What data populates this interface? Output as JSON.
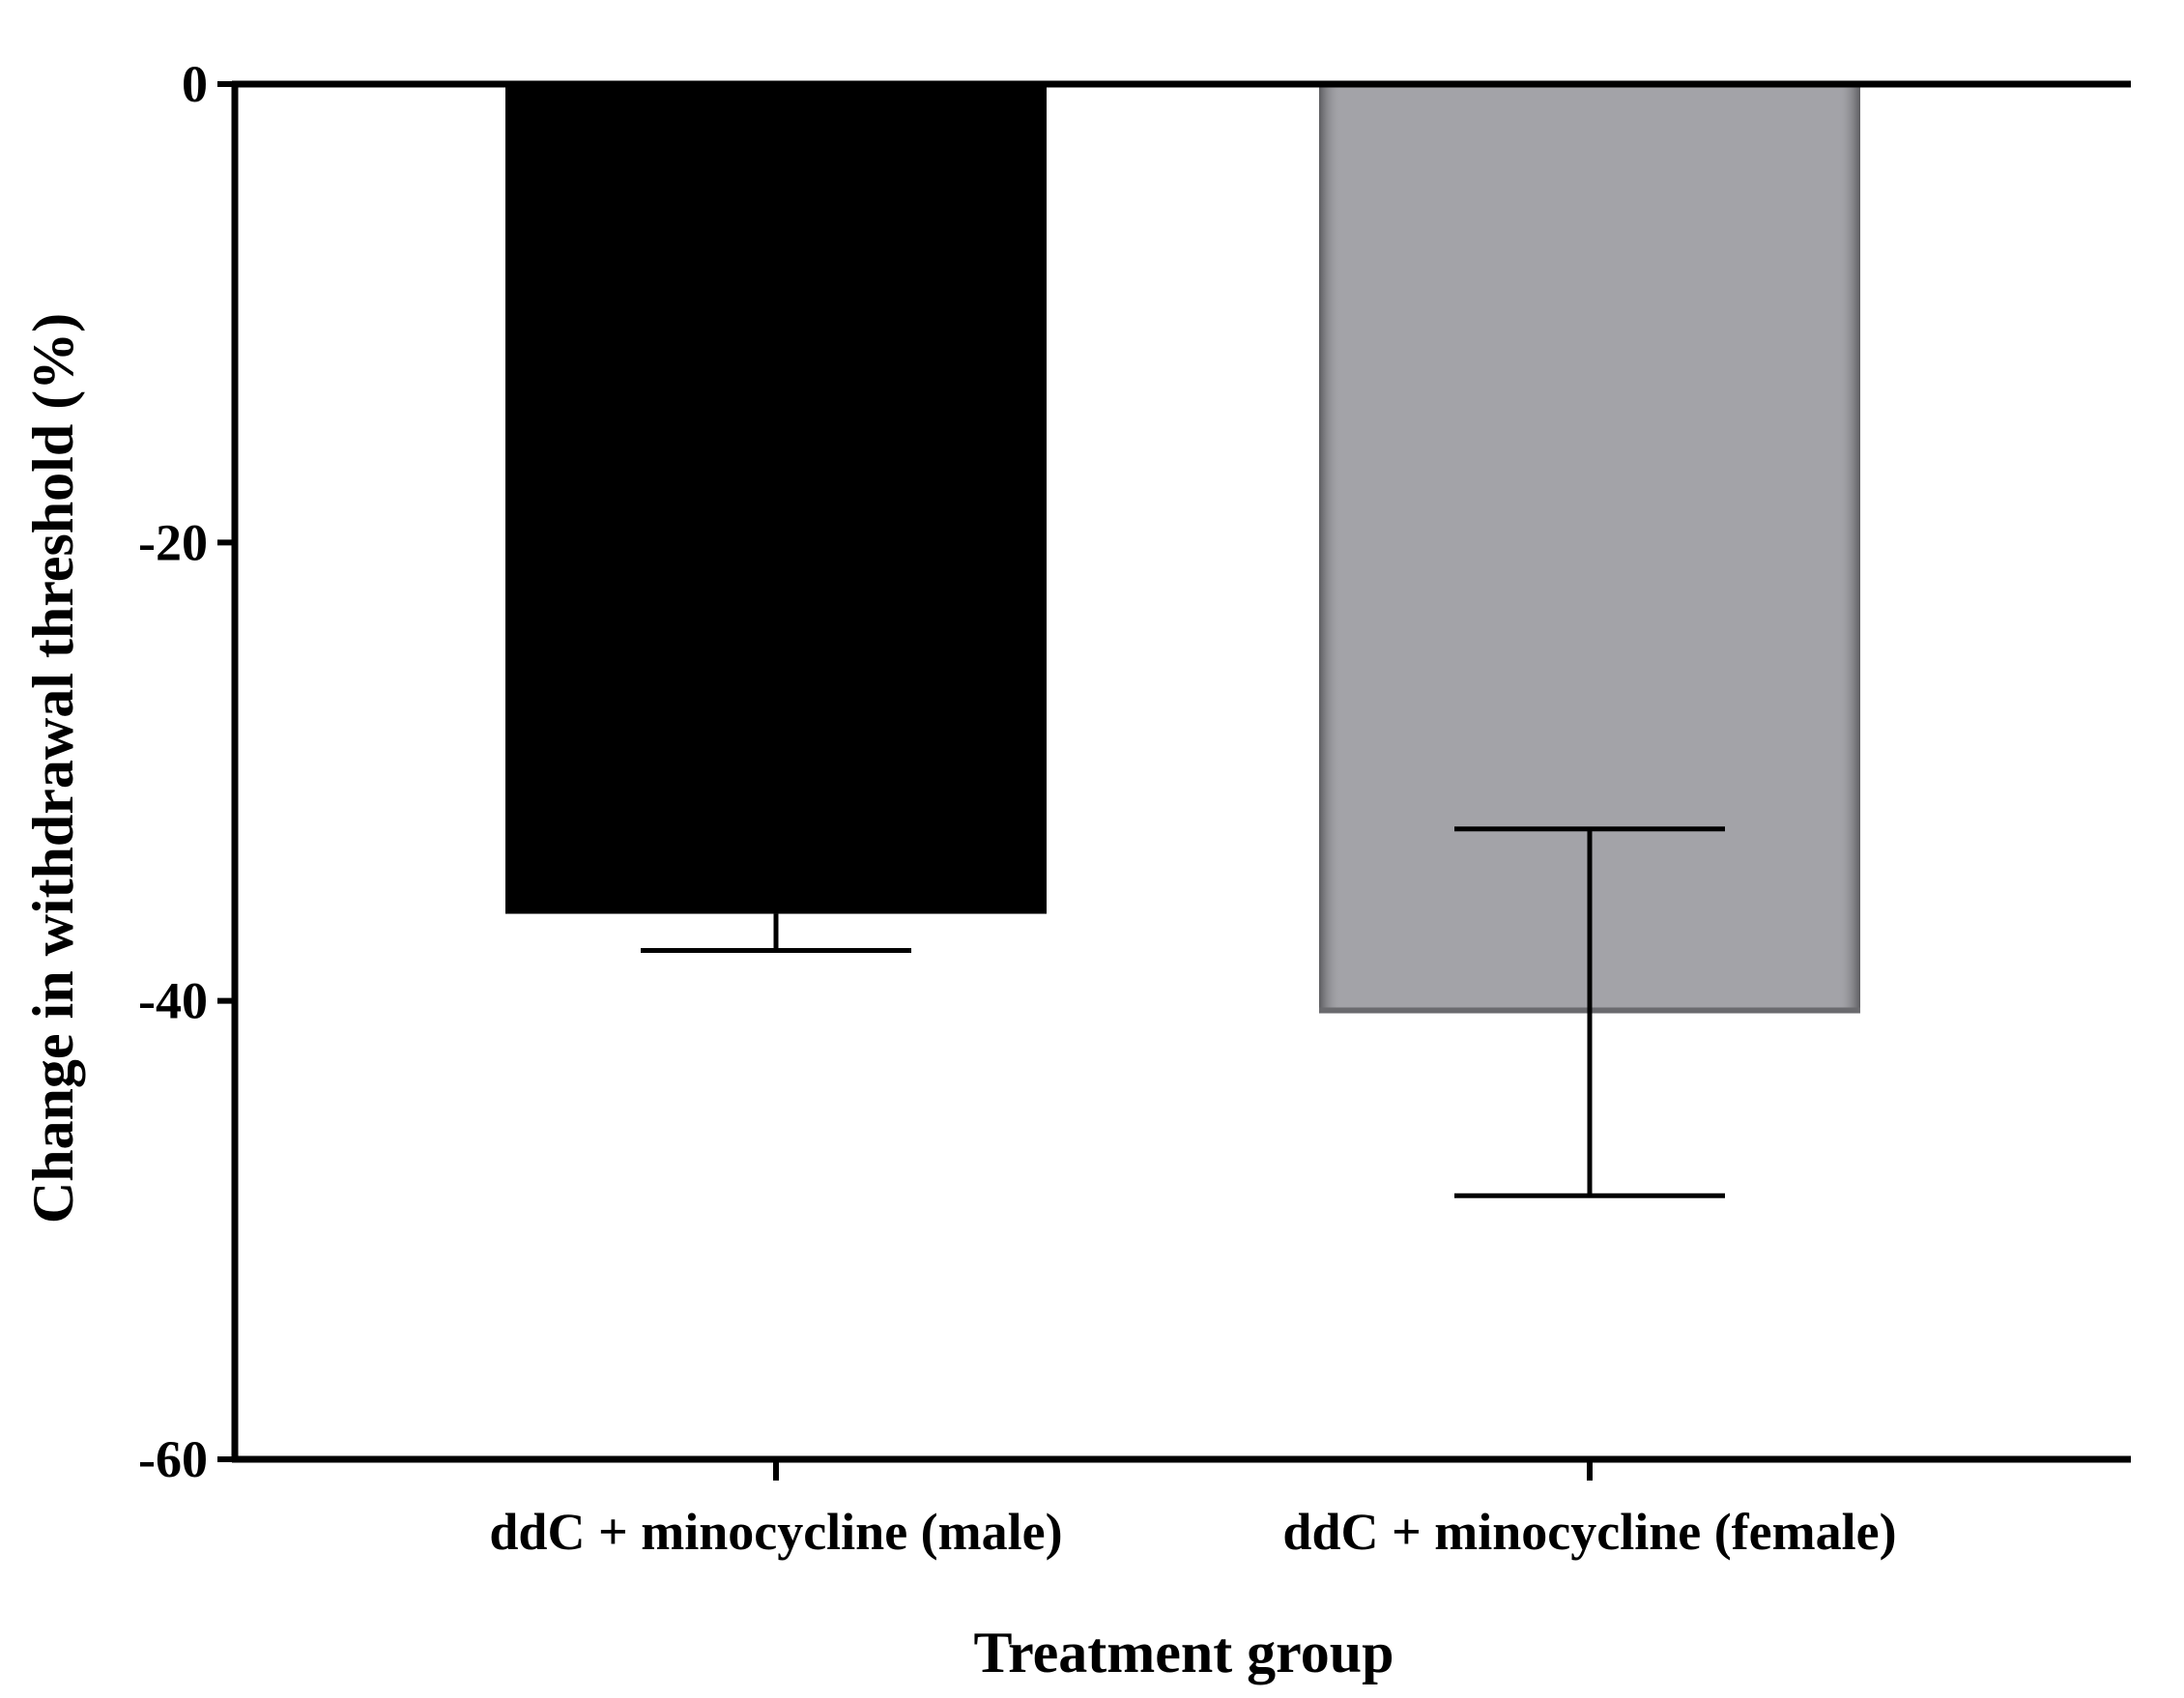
{
  "chart_data": {
    "type": "bar",
    "title": "",
    "xlabel": "Treatment group",
    "ylabel": "Change in withdrawal threshold (%)",
    "categories": [
      "ddC + minocycline (male)",
      "ddC + minocycline (female)"
    ],
    "values": [
      -36.2,
      -40.5
    ],
    "error_bars": [
      1.6,
      8.0
    ],
    "error_direction": [
      "down",
      "both"
    ],
    "ylim": [
      -60,
      0
    ],
    "yticks": [
      0,
      -20,
      -40,
      -60
    ],
    "ytick_labels": [
      "0",
      "-20",
      "-40",
      "-60"
    ],
    "grid": false,
    "legend": "none",
    "colors": {
      "bars": [
        "#000000",
        "#a3a3a8"
      ],
      "bar_edge_female": "#6a6a6e",
      "axis": "#000000"
    }
  }
}
